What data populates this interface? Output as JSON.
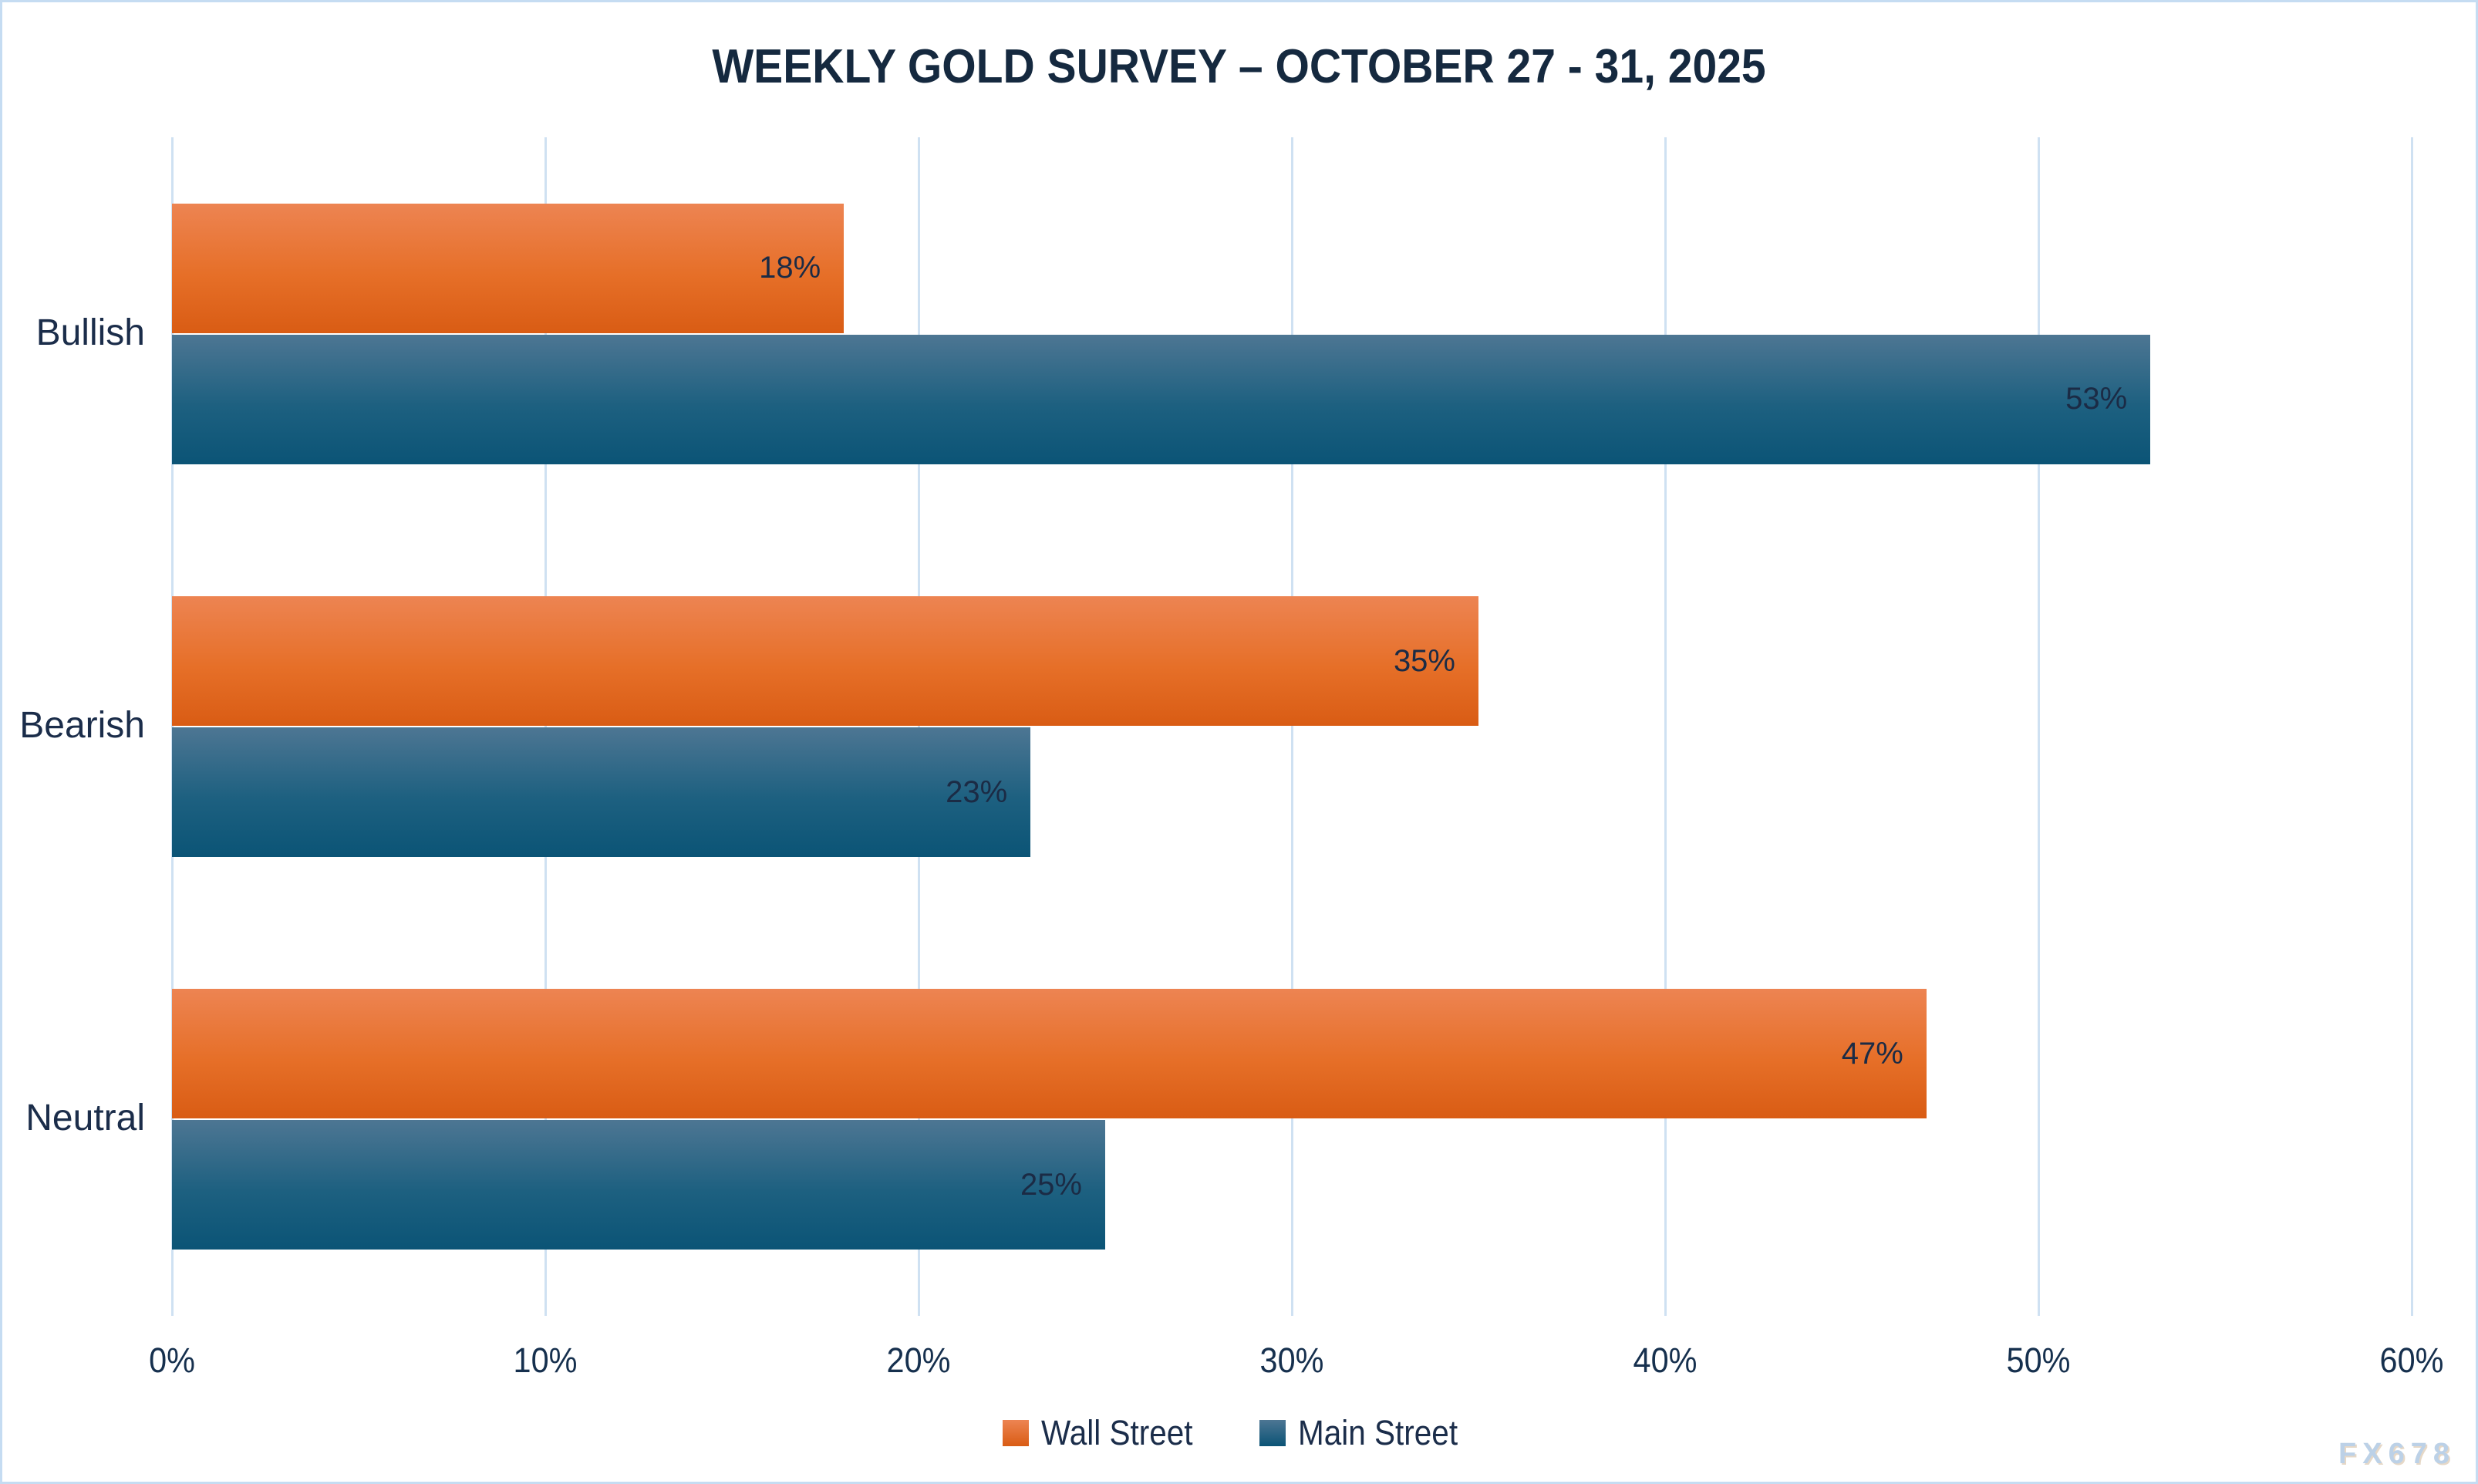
{
  "page": {
    "watermark": "FX678",
    "border_color": "#c5dcf2",
    "background_color": "#ffffff",
    "text_color": "#1b2d4a",
    "title_color": "#15293f"
  },
  "chart_data": {
    "type": "bar",
    "orientation": "horizontal",
    "title": "WEEKLY GOLD SURVEY – OCTOBER 27 - 31, 2025",
    "categories": [
      "Bullish",
      "Bearish",
      "Neutral"
    ],
    "series": [
      {
        "name": "Wall Street",
        "values": [
          18,
          35,
          47
        ],
        "color_top": "#ED8452",
        "color_mid": "#E66F28",
        "color_bottom": "#D95C14"
      },
      {
        "name": "Main Street",
        "values": [
          53,
          23,
          25
        ],
        "color_top": "#4D7693",
        "color_mid": "#1D6080",
        "color_bottom": "#0B5476"
      }
    ],
    "value_labels": [
      {
        "category": "Bullish",
        "Wall Street": "18%",
        "Main Street": "53%"
      },
      {
        "category": "Bearish",
        "Wall Street": "35%",
        "Main Street": "23%"
      },
      {
        "category": "Neutral",
        "Wall Street": "47%",
        "Main Street": "25%"
      }
    ],
    "value_suffix": "%",
    "xlabel": "",
    "ylabel": "",
    "xlim": [
      0,
      60
    ],
    "x_tick_step": 10,
    "x_ticks": [
      "0%",
      "10%",
      "20%",
      "30%",
      "40%",
      "50%",
      "60%"
    ],
    "grid": true,
    "gridline_color": "#cfe1f2",
    "legend_position": "bottom",
    "legend": [
      "Wall Street",
      "Main Street"
    ]
  }
}
